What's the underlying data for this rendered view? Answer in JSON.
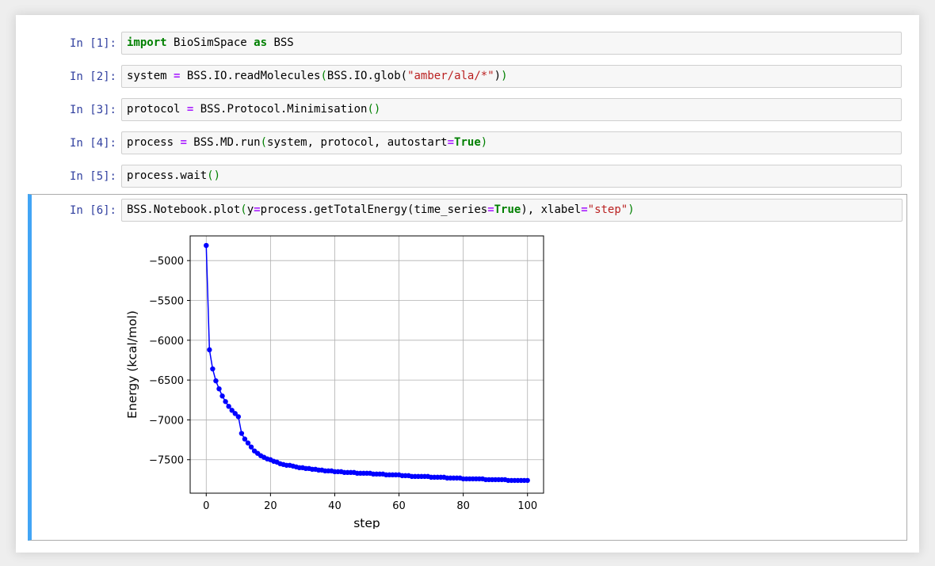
{
  "cells": [
    {
      "prompt": "In [1]:",
      "tokens": [
        {
          "t": "import",
          "c": "kw"
        },
        {
          "t": " BioSimSpace ",
          "c": "plain"
        },
        {
          "t": "as",
          "c": "kw"
        },
        {
          "t": " BSS",
          "c": "plain"
        }
      ]
    },
    {
      "prompt": "In [2]:",
      "tokens": [
        {
          "t": "system ",
          "c": "plain"
        },
        {
          "t": "=",
          "c": "op"
        },
        {
          "t": " BSS.IO.readMolecules",
          "c": "plain"
        },
        {
          "t": "(",
          "c": "paren"
        },
        {
          "t": "BSS.IO.glob(",
          "c": "plain"
        },
        {
          "t": "\"amber/ala/*\"",
          "c": "str"
        },
        {
          "t": ")",
          "c": "plain"
        },
        {
          "t": ")",
          "c": "paren"
        }
      ]
    },
    {
      "prompt": "In [3]:",
      "tokens": [
        {
          "t": "protocol ",
          "c": "plain"
        },
        {
          "t": "=",
          "c": "op"
        },
        {
          "t": " BSS.Protocol.Minimisation",
          "c": "plain"
        },
        {
          "t": "()",
          "c": "paren"
        }
      ]
    },
    {
      "prompt": "In [4]:",
      "tokens": [
        {
          "t": "process ",
          "c": "plain"
        },
        {
          "t": "=",
          "c": "op"
        },
        {
          "t": " BSS.MD.run",
          "c": "plain"
        },
        {
          "t": "(",
          "c": "paren"
        },
        {
          "t": "system, protocol, autostart",
          "c": "plain"
        },
        {
          "t": "=",
          "c": "op"
        },
        {
          "t": "True",
          "c": "kw"
        },
        {
          "t": ")",
          "c": "paren"
        }
      ]
    },
    {
      "prompt": "In [5]:",
      "tokens": [
        {
          "t": "process.wait",
          "c": "plain"
        },
        {
          "t": "()",
          "c": "paren"
        }
      ]
    },
    {
      "prompt": "In [6]:",
      "tokens": [
        {
          "t": "BSS.Notebook.plot",
          "c": "plain"
        },
        {
          "t": "(",
          "c": "paren"
        },
        {
          "t": "y",
          "c": "plain"
        },
        {
          "t": "=",
          "c": "op"
        },
        {
          "t": "process.getTotalEnergy(time_series",
          "c": "plain"
        },
        {
          "t": "=",
          "c": "op"
        },
        {
          "t": "True",
          "c": "kw"
        },
        {
          "t": "), xlabel",
          "c": "plain"
        },
        {
          "t": "=",
          "c": "op"
        },
        {
          "t": "\"step\"",
          "c": "str"
        },
        {
          "t": ")",
          "c": "paren"
        }
      ]
    }
  ],
  "chart_data": {
    "type": "line",
    "title": "",
    "xlabel": "step",
    "ylabel": "Energy (kcal/mol)",
    "xlim": [
      -5,
      105
    ],
    "ylim": [
      -7920,
      -4690
    ],
    "xticks": [
      0,
      20,
      40,
      60,
      80,
      100
    ],
    "yticks": [
      -5000,
      -5500,
      -6000,
      -6500,
      -7000,
      -7500
    ],
    "grid": true,
    "marker": "o",
    "color": "#0000ff",
    "series": [
      {
        "x": [
          0,
          1,
          2,
          3,
          4,
          5,
          6,
          7,
          8,
          9,
          10,
          11,
          12,
          13,
          14,
          15,
          16,
          17,
          18,
          19,
          20,
          21,
          22,
          23,
          24,
          25,
          26,
          27,
          28,
          29,
          30,
          31,
          32,
          33,
          34,
          35,
          36,
          37,
          38,
          39,
          40,
          41,
          42,
          43,
          44,
          45,
          46,
          47,
          48,
          49,
          50,
          51,
          52,
          53,
          54,
          55,
          56,
          57,
          58,
          59,
          60,
          61,
          62,
          63,
          64,
          65,
          66,
          67,
          68,
          69,
          70,
          71,
          72,
          73,
          74,
          75,
          76,
          77,
          78,
          79,
          80,
          81,
          82,
          83,
          84,
          85,
          86,
          87,
          88,
          89,
          90,
          91,
          92,
          93,
          94,
          95,
          96,
          97,
          98,
          99,
          100
        ],
        "values": [
          -4810,
          -6120,
          -6360,
          -6510,
          -6610,
          -6700,
          -6770,
          -6830,
          -6880,
          -6920,
          -6960,
          -7170,
          -7240,
          -7290,
          -7340,
          -7390,
          -7420,
          -7450,
          -7470,
          -7490,
          -7500,
          -7520,
          -7530,
          -7550,
          -7560,
          -7570,
          -7570,
          -7580,
          -7590,
          -7600,
          -7600,
          -7610,
          -7610,
          -7620,
          -7620,
          -7630,
          -7630,
          -7640,
          -7640,
          -7640,
          -7650,
          -7650,
          -7650,
          -7660,
          -7660,
          -7660,
          -7660,
          -7670,
          -7670,
          -7670,
          -7670,
          -7670,
          -7680,
          -7680,
          -7680,
          -7680,
          -7690,
          -7690,
          -7690,
          -7690,
          -7690,
          -7700,
          -7700,
          -7700,
          -7710,
          -7710,
          -7710,
          -7710,
          -7710,
          -7710,
          -7720,
          -7720,
          -7720,
          -7720,
          -7720,
          -7730,
          -7730,
          -7730,
          -7730,
          -7730,
          -7740,
          -7740,
          -7740,
          -7740,
          -7740,
          -7740,
          -7740,
          -7750,
          -7750,
          -7750,
          -7750,
          -7750,
          -7750,
          -7750,
          -7760,
          -7760,
          -7760,
          -7760,
          -7760,
          -7760,
          -7760
        ]
      }
    ]
  }
}
